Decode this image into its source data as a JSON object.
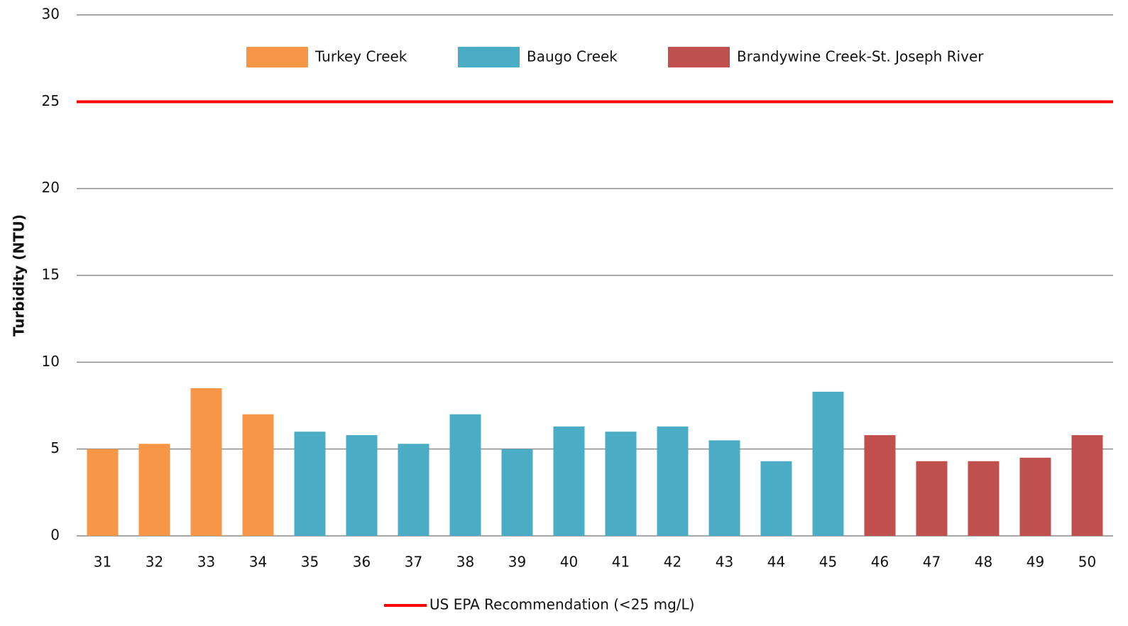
{
  "chart_data": {
    "type": "bar",
    "y_label": "Turbidity (NTU)",
    "categories": [
      "31",
      "32",
      "33",
      "34",
      "35",
      "36",
      "37",
      "38",
      "39",
      "40",
      "41",
      "42",
      "43",
      "44",
      "45",
      "46",
      "47",
      "48",
      "49",
      "50"
    ],
    "series": [
      {
        "name": "Turkey Creek",
        "color": "#f79646",
        "values": [
          5,
          5.3,
          8.5,
          7,
          null,
          null,
          null,
          null,
          null,
          null,
          null,
          null,
          null,
          null,
          null,
          null,
          null,
          null,
          null,
          null
        ]
      },
      {
        "name": "Baugo Creek",
        "color": "#4bacc6",
        "values": [
          null,
          null,
          null,
          null,
          6,
          5.8,
          5.3,
          7,
          5,
          6.3,
          6,
          6.3,
          5.5,
          4.3,
          8.3,
          null,
          null,
          null,
          null,
          null
        ]
      },
      {
        "name": "Brandywine Creek-St. Joseph River",
        "color": "#c0504d",
        "values": [
          null,
          null,
          null,
          null,
          null,
          null,
          null,
          null,
          null,
          null,
          null,
          null,
          null,
          null,
          null,
          5.8,
          4.3,
          4.3,
          4.5,
          5.8
        ]
      }
    ],
    "reference_line": {
      "value": 25,
      "label": "US EPA Recommendation (<25 mg/L)",
      "color": "#ff0000"
    },
    "ylim": [
      0,
      30
    ],
    "yticks": [
      0,
      5,
      10,
      15,
      20,
      25,
      30
    ],
    "grid": true
  }
}
